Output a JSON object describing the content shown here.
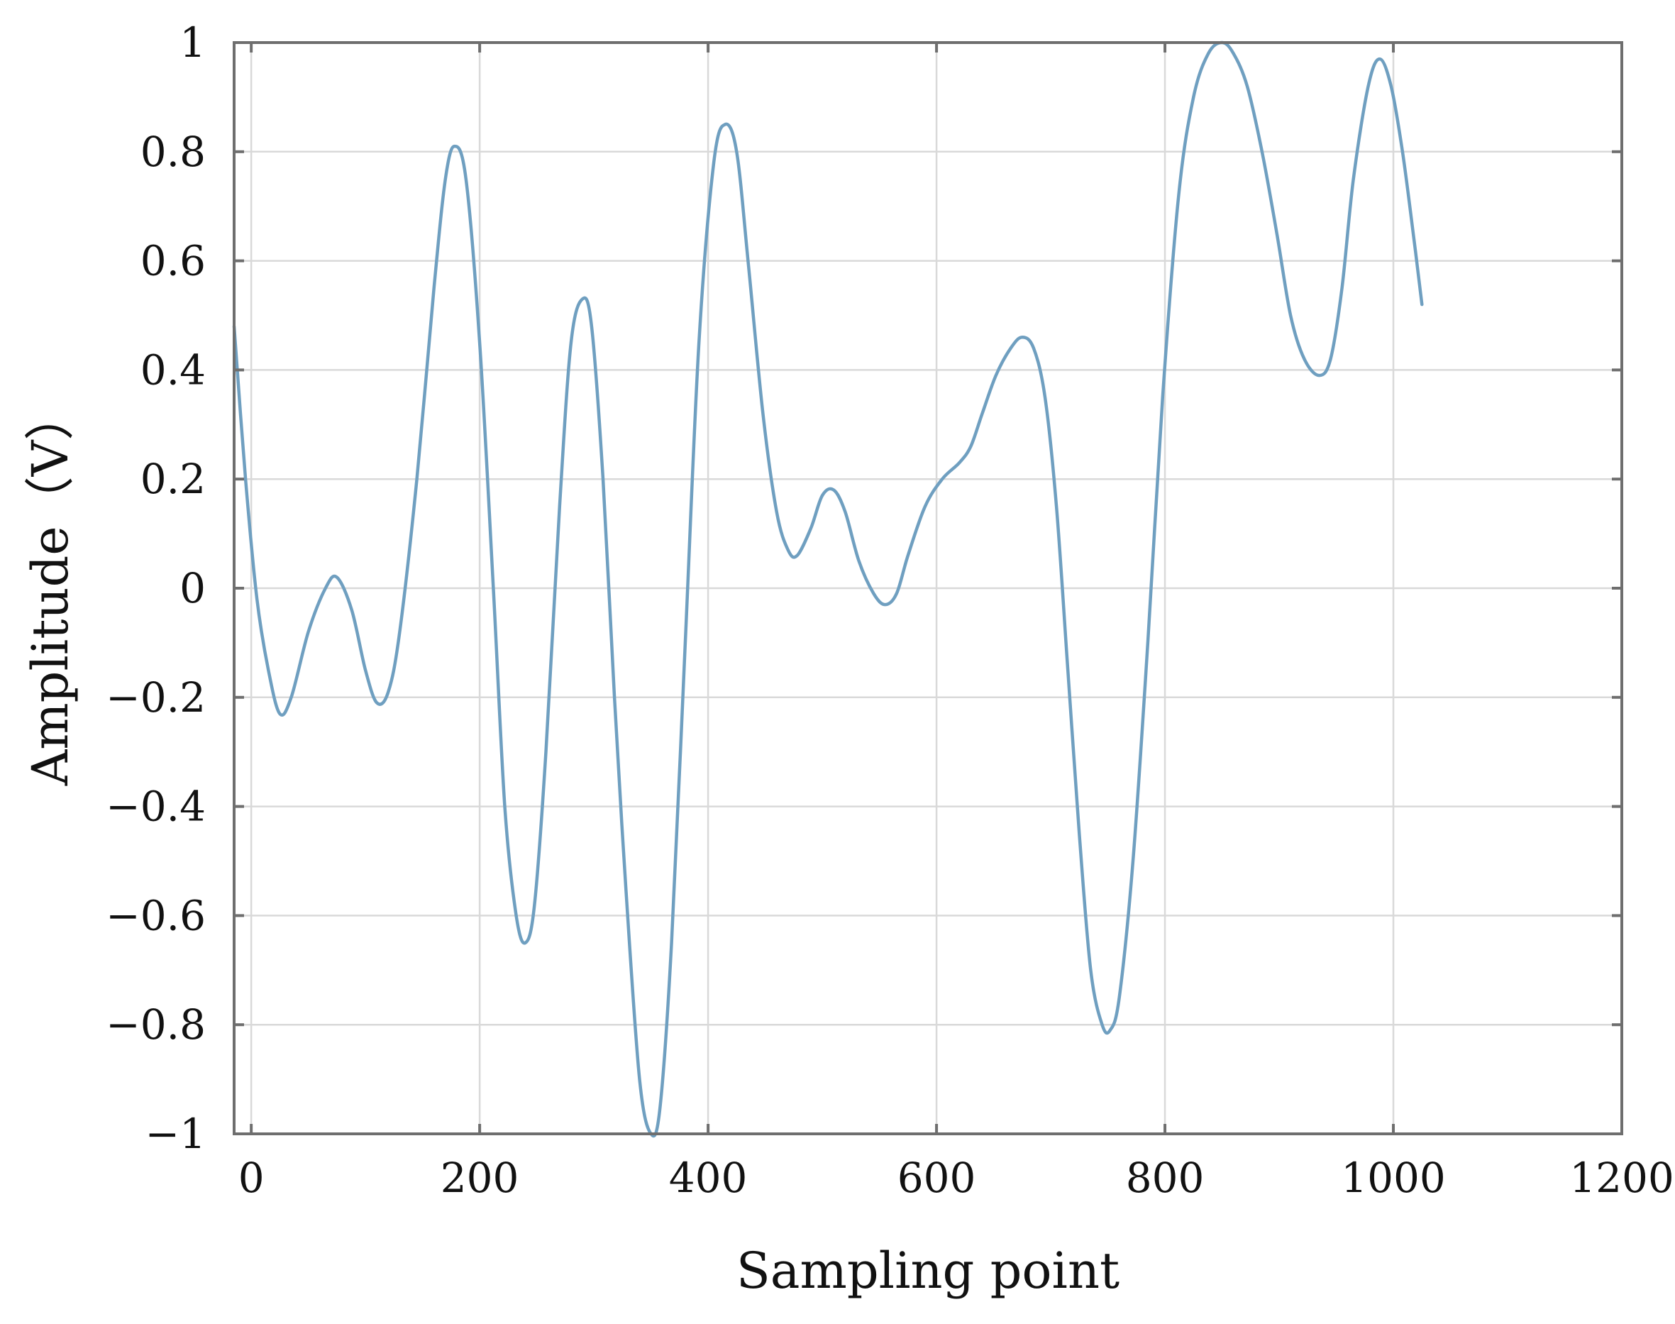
{
  "chart_data": {
    "type": "line",
    "title": "",
    "xlabel": "Sampling point",
    "ylabel": "Amplitude（V）",
    "xlim": [
      -15,
      1200
    ],
    "ylim": [
      -1,
      1
    ],
    "grid": true,
    "x_ticks": [
      0,
      200,
      400,
      600,
      800,
      1000,
      1200
    ],
    "x_tick_labels": [
      "0",
      "200",
      "400",
      "600",
      "800",
      "1000",
      "1200"
    ],
    "y_ticks": [
      1,
      0.8,
      0.6,
      0.4,
      0.2,
      0,
      -0.2,
      -0.4,
      -0.6,
      -0.8,
      -1
    ],
    "y_tick_labels": [
      "1",
      "0.8",
      "0.6",
      "0.4",
      "0.2",
      "0",
      "−0.2",
      "−0.4",
      "−0.6",
      "−0.8",
      "−1"
    ],
    "line_color": "#6f9fc0",
    "series": [
      {
        "name": "",
        "points": [
          [
            -15,
            0.48
          ],
          [
            -5,
            0.2
          ],
          [
            5,
            -0.02
          ],
          [
            15,
            -0.15
          ],
          [
            25,
            -0.23
          ],
          [
            35,
            -0.2
          ],
          [
            50,
            -0.08
          ],
          [
            65,
            0.0
          ],
          [
            75,
            0.02
          ],
          [
            88,
            -0.04
          ],
          [
            100,
            -0.15
          ],
          [
            110,
            -0.21
          ],
          [
            120,
            -0.19
          ],
          [
            130,
            -0.08
          ],
          [
            145,
            0.2
          ],
          [
            160,
            0.55
          ],
          [
            170,
            0.75
          ],
          [
            178,
            0.81
          ],
          [
            188,
            0.75
          ],
          [
            200,
            0.45
          ],
          [
            212,
            0.0
          ],
          [
            222,
            -0.4
          ],
          [
            232,
            -0.6
          ],
          [
            240,
            -0.65
          ],
          [
            248,
            -0.58
          ],
          [
            258,
            -0.3
          ],
          [
            270,
            0.15
          ],
          [
            280,
            0.45
          ],
          [
            290,
            0.53
          ],
          [
            298,
            0.48
          ],
          [
            308,
            0.2
          ],
          [
            318,
            -0.2
          ],
          [
            328,
            -0.55
          ],
          [
            340,
            -0.9
          ],
          [
            350,
            -1.0
          ],
          [
            358,
            -0.95
          ],
          [
            368,
            -0.65
          ],
          [
            380,
            -0.1
          ],
          [
            392,
            0.45
          ],
          [
            405,
            0.78
          ],
          [
            415,
            0.85
          ],
          [
            425,
            0.8
          ],
          [
            435,
            0.6
          ],
          [
            448,
            0.32
          ],
          [
            460,
            0.14
          ],
          [
            470,
            0.07
          ],
          [
            478,
            0.06
          ],
          [
            490,
            0.11
          ],
          [
            500,
            0.17
          ],
          [
            510,
            0.18
          ],
          [
            520,
            0.14
          ],
          [
            532,
            0.05
          ],
          [
            545,
            -0.01
          ],
          [
            555,
            -0.03
          ],
          [
            565,
            -0.01
          ],
          [
            575,
            0.06
          ],
          [
            590,
            0.15
          ],
          [
            605,
            0.2
          ],
          [
            620,
            0.23
          ],
          [
            630,
            0.26
          ],
          [
            640,
            0.32
          ],
          [
            652,
            0.39
          ],
          [
            665,
            0.44
          ],
          [
            675,
            0.46
          ],
          [
            685,
            0.44
          ],
          [
            695,
            0.35
          ],
          [
            705,
            0.15
          ],
          [
            715,
            -0.15
          ],
          [
            725,
            -0.45
          ],
          [
            735,
            -0.7
          ],
          [
            745,
            -0.8
          ],
          [
            752,
            -0.81
          ],
          [
            760,
            -0.75
          ],
          [
            772,
            -0.5
          ],
          [
            785,
            -0.1
          ],
          [
            798,
            0.35
          ],
          [
            812,
            0.72
          ],
          [
            825,
            0.9
          ],
          [
            838,
            0.98
          ],
          [
            850,
            1.0
          ],
          [
            860,
            0.98
          ],
          [
            872,
            0.92
          ],
          [
            885,
            0.8
          ],
          [
            898,
            0.65
          ],
          [
            910,
            0.5
          ],
          [
            922,
            0.42
          ],
          [
            935,
            0.39
          ],
          [
            945,
            0.42
          ],
          [
            955,
            0.55
          ],
          [
            965,
            0.75
          ],
          [
            978,
            0.92
          ],
          [
            988,
            0.97
          ],
          [
            998,
            0.92
          ],
          [
            1008,
            0.8
          ],
          [
            1018,
            0.64
          ],
          [
            1025,
            0.52
          ]
        ]
      }
    ]
  }
}
